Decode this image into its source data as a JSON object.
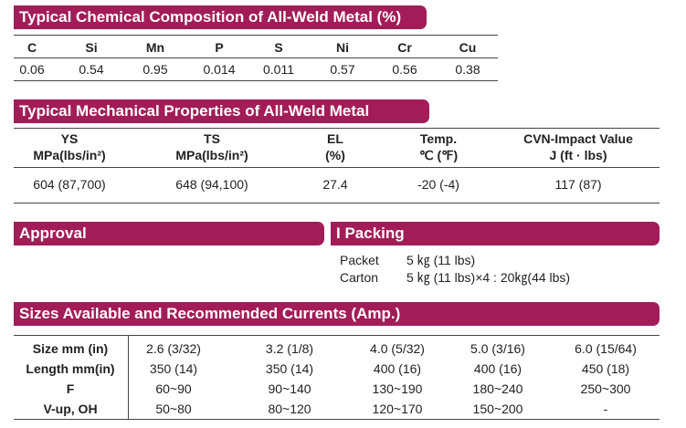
{
  "chemical": {
    "title": "Typical Chemical Composition of All-Weld Metal (%)",
    "headers": [
      "C",
      "Si",
      "Mn",
      "P",
      "S",
      "Ni",
      "Cr",
      "Cu"
    ],
    "values": [
      "0.06",
      "0.54",
      "0.95",
      "0.014",
      "0.011",
      "0.57",
      "0.56",
      "0.38"
    ]
  },
  "mechanical": {
    "title": "Typical Mechanical Properties of All-Weld Metal",
    "headers": [
      [
        "YS",
        "MPa(lbs/in²)"
      ],
      [
        "TS",
        "MPa(lbs/in²)"
      ],
      [
        "EL",
        "(%)"
      ],
      [
        "Temp.",
        "℃ (℉)"
      ],
      [
        "CVN-Impact Value",
        "J (ft · lbs)"
      ]
    ],
    "values": [
      "604 (87,700)",
      "648 (94,100)",
      "27.4",
      "-20 (-4)",
      "117 (87)"
    ]
  },
  "approval": {
    "title": "Approval"
  },
  "packing": {
    "title": "I Packing",
    "rows": [
      [
        "Packet",
        "5 ㎏ (11 lbs)"
      ],
      [
        "Carton",
        "5 ㎏ (11 lbs)×4 : 20㎏(44 lbs)"
      ]
    ]
  },
  "sizes": {
    "title": "Sizes Available and Recommended Currents (Amp.)",
    "rows": [
      [
        "Size mm (in)",
        "2.6 (3/32)",
        "3.2 (1/8)",
        "4.0 (5/32)",
        "5.0 (3/16)",
        "6.0 (15/64)"
      ],
      [
        "Length mm(in)",
        "350 (14)",
        "350 (14)",
        "400 (16)",
        "400 (16)",
        "450 (18)"
      ],
      [
        "F",
        "60~90",
        "90~140",
        "130~190",
        "180~240",
        "250~300"
      ],
      [
        "V-up, OH",
        "50~80",
        "80~120",
        "120~170",
        "150~200",
        "-"
      ]
    ]
  }
}
